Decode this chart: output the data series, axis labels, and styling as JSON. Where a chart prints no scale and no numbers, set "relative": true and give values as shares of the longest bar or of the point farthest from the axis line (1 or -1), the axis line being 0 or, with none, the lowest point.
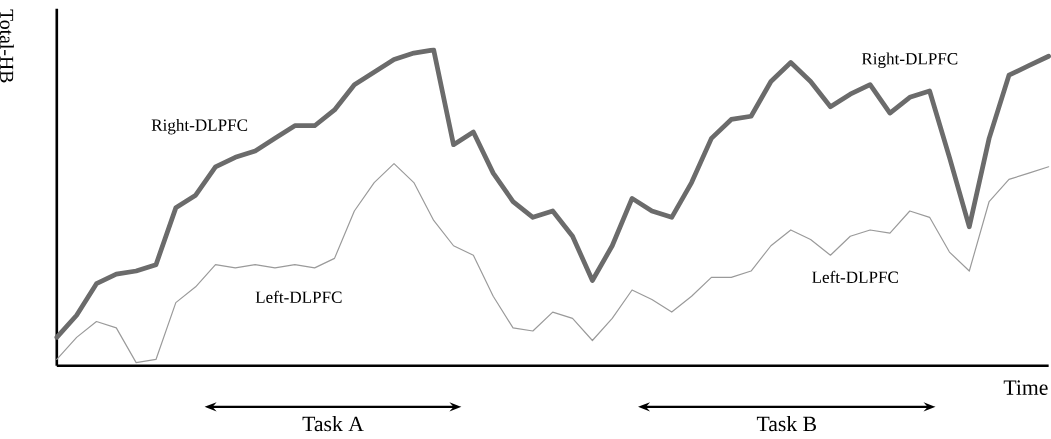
{
  "chart_data": {
    "type": "line",
    "relative": true,
    "xlabel": "Time",
    "ylabel": "Total-HB",
    "categories": [
      null,
      null,
      null,
      null,
      null,
      null,
      null,
      null,
      null,
      null,
      null,
      null,
      null,
      null,
      null,
      null,
      null,
      null,
      null,
      null,
      null,
      null,
      null,
      null,
      null,
      null,
      null,
      null,
      null,
      null,
      null,
      null,
      null,
      null,
      null,
      null,
      null,
      null,
      null,
      null,
      null,
      null,
      null,
      null,
      null,
      null,
      null,
      null,
      null,
      null,
      null
    ],
    "series": [
      {
        "name": "Right-DLPFC",
        "color": "#6b6b6b",
        "values": [
          0.09,
          0.16,
          0.26,
          0.29,
          0.3,
          0.32,
          0.5,
          0.54,
          0.63,
          0.66,
          0.68,
          0.72,
          0.76,
          0.76,
          0.81,
          0.89,
          0.93,
          0.97,
          0.99,
          1,
          0.7,
          0.74,
          0.61,
          0.52,
          0.47,
          0.49,
          0.41,
          0.27,
          0.38,
          0.53,
          0.49,
          0.47,
          0.58,
          0.72,
          0.78,
          0.79,
          0.9,
          0.96,
          0.9,
          0.82,
          0.86,
          0.89,
          0.8,
          0.85,
          0.87,
          0.66,
          0.44,
          0.72,
          0.92,
          0.95,
          0.98
        ]
      },
      {
        "name": "Left-DLPFC",
        "color": "#9a9a9a",
        "values": [
          0.02,
          0.09,
          0.14,
          0.12,
          0.01,
          0.02,
          0.2,
          0.25,
          0.32,
          0.31,
          0.32,
          0.31,
          0.32,
          0.31,
          0.34,
          0.49,
          0.58,
          0.64,
          0.58,
          0.46,
          0.38,
          0.35,
          0.22,
          0.12,
          0.11,
          0.17,
          0.15,
          0.08,
          0.15,
          0.24,
          0.21,
          0.17,
          0.22,
          0.28,
          0.28,
          0.3,
          0.38,
          0.43,
          0.4,
          0.35,
          0.41,
          0.43,
          0.42,
          0.49,
          0.47,
          0.36,
          0.3,
          0.52,
          0.59,
          0.61,
          0.63
        ]
      }
    ],
    "annotations": [
      "Task A",
      "Task B"
    ]
  }
}
